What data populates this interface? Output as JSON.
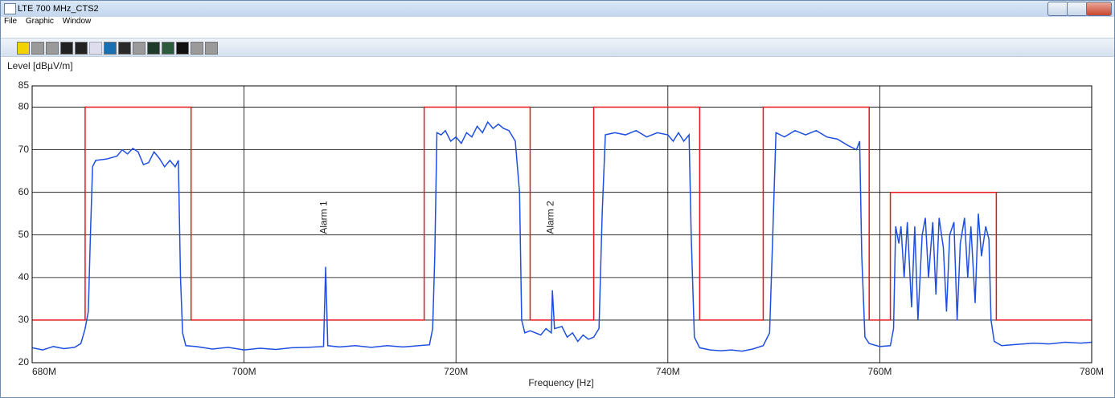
{
  "window": {
    "title": "LTE 700 MHz_CTS2",
    "menu": [
      "File",
      "Graphic",
      "Window"
    ]
  },
  "chart_data": {
    "type": "line",
    "y_label": "Level [dBµV/m]",
    "x_label": "Frequency [Hz]",
    "grid": true,
    "xlim": [
      680000000,
      780000000
    ],
    "ylim": [
      20,
      85
    ],
    "xticks": [
      {
        "value": 680000000,
        "label": "680M"
      },
      {
        "value": 700000000,
        "label": "700M"
      },
      {
        "value": 720000000,
        "label": "720M"
      },
      {
        "value": 740000000,
        "label": "740M"
      },
      {
        "value": 760000000,
        "label": "760M"
      },
      {
        "value": 780000000,
        "label": "780M"
      }
    ],
    "yticks": [
      20,
      30,
      40,
      50,
      60,
      70,
      80,
      85
    ],
    "annotations": [
      {
        "text": "Alarm 1",
        "x": 707700000
      },
      {
        "text": "Alarm 2",
        "x": 729100000
      }
    ],
    "series": [
      {
        "color": "#e8141c",
        "x": [
          680000000,
          685000000,
          685000000,
          695000000,
          695000000,
          717000000,
          717000000,
          727000000,
          727000000,
          733000000,
          733000000,
          743000000,
          743000000,
          749000000,
          749000000,
          759000000,
          759000000,
          761000000,
          761000000,
          771000000,
          771000000,
          780000000
        ],
        "values": [
          30,
          30,
          80,
          80,
          30,
          30,
          80,
          80,
          30,
          30,
          80,
          80,
          30,
          30,
          80,
          80,
          30,
          30,
          60,
          60,
          30,
          30
        ]
      },
      {
        "color": "#1f4fe0",
        "x": [
          680000000,
          681000000,
          682000000,
          683000000,
          684000000,
          684600000,
          685000000,
          685300000,
          685500000,
          685700000,
          686000000,
          687000000,
          688000000,
          688500000,
          689000000,
          689500000,
          690000000,
          690500000,
          691000000,
          691500000,
          692000000,
          692500000,
          693000000,
          693500000,
          693800000,
          694000000,
          694200000,
          694500000,
          695500000,
          697000000,
          698500000,
          700000000,
          701500000,
          703000000,
          704500000,
          706000000,
          707500000,
          707700000,
          707900000,
          709000000,
          710500000,
          712000000,
          713500000,
          715000000,
          716500000,
          717500000,
          717800000,
          718000000,
          718200000,
          718600000,
          719000000,
          719500000,
          720000000,
          720500000,
          721000000,
          721500000,
          722000000,
          722500000,
          723000000,
          723500000,
          724000000,
          724500000,
          725000000,
          725600000,
          726000000,
          726200000,
          726500000,
          727000000,
          728000000,
          728500000,
          729000000,
          729100000,
          729300000,
          730000000,
          730500000,
          731000000,
          731500000,
          732000000,
          732500000,
          733000000,
          733500000,
          733800000,
          734100000,
          735000000,
          736000000,
          737000000,
          738000000,
          739000000,
          740000000,
          740500000,
          741000000,
          741500000,
          742000000,
          742200000,
          742500000,
          743000000,
          744000000,
          745000000,
          746000000,
          747000000,
          748000000,
          749000000,
          749600000,
          749900000,
          750200000,
          751000000,
          752000000,
          753000000,
          754000000,
          755000000,
          756000000,
          757000000,
          757800000,
          758100000,
          758300000,
          758600000,
          759000000,
          760000000,
          761000000,
          761300000,
          761500000,
          761800000,
          762000000,
          762300000,
          762600000,
          763000000,
          763300000,
          763600000,
          764000000,
          764300000,
          764600000,
          765000000,
          765300000,
          765600000,
          766000000,
          766300000,
          766600000,
          767000000,
          767300000,
          767600000,
          768000000,
          768300000,
          768600000,
          769000000,
          769300000,
          769600000,
          770000000,
          770300000,
          770500000,
          770800000,
          771500000,
          773000000,
          774500000,
          776000000,
          777500000,
          779000000,
          780000000
        ],
        "values": [
          23.5,
          23.0,
          23.8,
          23.3,
          23.6,
          24.5,
          28,
          32,
          50,
          66,
          67.5,
          67.8,
          68.5,
          70,
          69,
          70.3,
          69.5,
          66.5,
          67,
          69.5,
          68,
          66,
          67.5,
          66,
          67.5,
          40,
          27,
          24,
          23.8,
          23.2,
          23.6,
          23.0,
          23.4,
          23.1,
          23.5,
          23.6,
          23.8,
          42.5,
          24,
          23.7,
          24,
          23.6,
          24,
          23.7,
          24,
          24.2,
          28,
          45,
          74,
          73.5,
          74.5,
          72,
          73,
          71.5,
          74,
          73,
          75.5,
          74,
          76.5,
          75,
          76,
          75,
          74.5,
          72,
          60,
          30,
          27,
          27.5,
          26.5,
          28,
          27,
          37,
          28,
          28.5,
          26,
          27,
          25,
          26.5,
          25.5,
          26,
          28,
          55,
          73.5,
          74,
          73.5,
          74.5,
          73,
          74,
          73.5,
          72,
          74,
          72,
          73.5,
          50,
          26,
          23.5,
          23,
          22.8,
          23,
          22.7,
          23.2,
          24,
          27,
          50,
          74,
          73,
          74.5,
          73.5,
          74.5,
          73,
          72.5,
          71,
          70,
          72,
          45,
          26,
          24.5,
          23.8,
          24,
          28,
          52,
          48,
          52,
          40,
          53,
          33,
          52,
          30,
          50,
          54,
          40,
          53,
          36,
          54,
          47,
          32,
          50,
          53,
          30,
          48,
          54,
          40,
          52,
          34,
          55,
          45,
          52,
          49,
          30,
          25,
          24,
          24.3,
          24.6,
          24.4,
          24.8,
          24.6,
          24.8
        ]
      }
    ]
  }
}
